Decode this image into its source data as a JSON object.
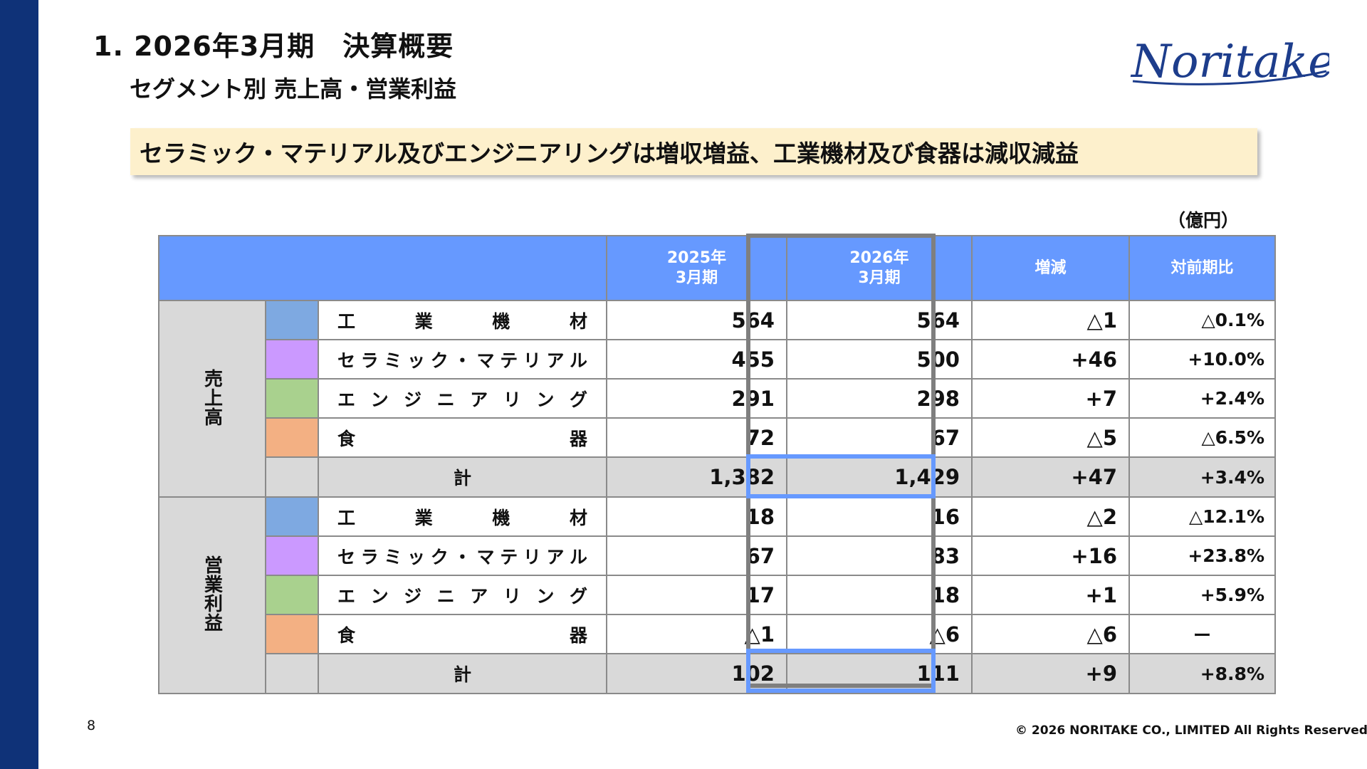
{
  "header": {
    "title": "1. 2026年3月期　決算概要",
    "subtitle": "セグメント別 売上高・営業利益",
    "logo_text": "Noritake"
  },
  "banner": {
    "text": "セラミック・マテリアル及びエンジニアリングは増収増益、工業機材及び食器は減収減益"
  },
  "unit_label": "（億円）",
  "table": {
    "columns": {
      "prev_year": [
        "2025年",
        "3月期"
      ],
      "curr_year": [
        "2026年",
        "3月期"
      ],
      "change": "増減",
      "yoy": "対前期比"
    },
    "groups": [
      {
        "label": "売上高",
        "rows": [
          {
            "name": "工業機材",
            "prev": "564",
            "curr": "564",
            "change": "△1",
            "yoy": "△0.1%",
            "color": "#7ea9e1"
          },
          {
            "name": "セラミック・マテリアル",
            "prev": "455",
            "curr": "500",
            "change": "+46",
            "yoy": "+10.0%",
            "color": "#cb99ff"
          },
          {
            "name": "エンジニアリング",
            "prev": "291",
            "curr": "298",
            "change": "+7",
            "yoy": "+2.4%",
            "color": "#a9d18e"
          },
          {
            "name": "食器",
            "prev": "72",
            "curr": "67",
            "change": "△5",
            "yoy": "△6.5%",
            "color": "#f3b083"
          }
        ],
        "total": {
          "name": "計",
          "prev": "1,382",
          "curr": "1,429",
          "change": "+47",
          "yoy": "+3.4%"
        }
      },
      {
        "label": "営業利益",
        "rows": [
          {
            "name": "工業機材",
            "prev": "18",
            "curr": "16",
            "change": "△2",
            "yoy": "△12.1%",
            "color": "#7ea9e1"
          },
          {
            "name": "セラミック・マテリアル",
            "prev": "67",
            "curr": "83",
            "change": "+16",
            "yoy": "+23.8%",
            "color": "#cb99ff"
          },
          {
            "name": "エンジニアリング",
            "prev": "17",
            "curr": "18",
            "change": "+1",
            "yoy": "+5.9%",
            "color": "#a9d18e"
          },
          {
            "name": "食器",
            "prev": "△1",
            "curr": "△6",
            "change": "△6",
            "yoy": "ー",
            "color": "#f3b083"
          }
        ],
        "total": {
          "name": "計",
          "prev": "102",
          "curr": "111",
          "change": "+9",
          "yoy": "+8.8%"
        }
      }
    ]
  },
  "footer": {
    "page_number": "8",
    "copyright": "© 2026 NORITAKE CO., LIMITED All Rights Reserved."
  },
  "colors": {
    "sidebar": "#0f3278",
    "header_fill": "#6699ff",
    "banner_fill": "#fdf0cc",
    "total_fill": "#d9d9d9",
    "highlight_column": "#7f7f7f",
    "highlight_total": "#6699ff"
  }
}
